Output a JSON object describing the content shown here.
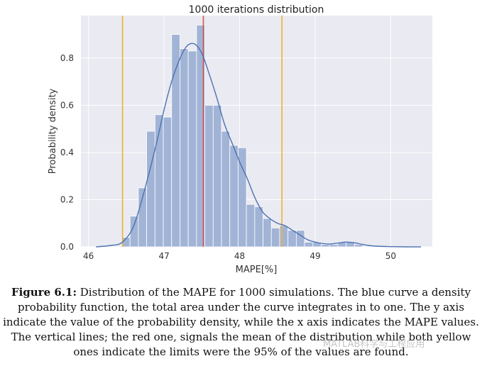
{
  "chart_data": {
    "type": "histogram",
    "title": "1000 iterations distribution",
    "xlabel": "MAPE[%]",
    "ylabel": "Probability density",
    "xlim": [
      45.9,
      50.55
    ],
    "ylim": [
      0,
      0.98
    ],
    "xticks": [
      "46",
      "47",
      "48",
      "49",
      "50"
    ],
    "yticks": [
      "0.0",
      "0.2",
      "0.4",
      "0.6",
      "0.8"
    ],
    "grid": true,
    "bins": [
      {
        "x0": 46.44,
        "x1": 46.55,
        "density": 0.04
      },
      {
        "x0": 46.55,
        "x1": 46.66,
        "density": 0.13
      },
      {
        "x0": 46.66,
        "x1": 46.77,
        "density": 0.25
      },
      {
        "x0": 46.77,
        "x1": 46.88,
        "density": 0.49
      },
      {
        "x0": 46.88,
        "x1": 46.99,
        "density": 0.56
      },
      {
        "x0": 46.99,
        "x1": 47.1,
        "density": 0.55
      },
      {
        "x0": 47.1,
        "x1": 47.21,
        "density": 0.9
      },
      {
        "x0": 47.21,
        "x1": 47.32,
        "density": 0.84
      },
      {
        "x0": 47.32,
        "x1": 47.43,
        "density": 0.83
      },
      {
        "x0": 47.43,
        "x1": 47.54,
        "density": 0.94
      },
      {
        "x0": 47.54,
        "x1": 47.65,
        "density": 0.6
      },
      {
        "x0": 47.65,
        "x1": 47.76,
        "density": 0.6
      },
      {
        "x0": 47.76,
        "x1": 47.87,
        "density": 0.49
      },
      {
        "x0": 47.87,
        "x1": 47.98,
        "density": 0.43
      },
      {
        "x0": 47.98,
        "x1": 48.09,
        "density": 0.42
      },
      {
        "x0": 48.09,
        "x1": 48.2,
        "density": 0.18
      },
      {
        "x0": 48.2,
        "x1": 48.31,
        "density": 0.17
      },
      {
        "x0": 48.31,
        "x1": 48.42,
        "density": 0.12
      },
      {
        "x0": 48.42,
        "x1": 48.53,
        "density": 0.08
      },
      {
        "x0": 48.53,
        "x1": 48.64,
        "density": 0.09
      },
      {
        "x0": 48.64,
        "x1": 48.75,
        "density": 0.07
      },
      {
        "x0": 48.75,
        "x1": 48.86,
        "density": 0.07
      },
      {
        "x0": 48.86,
        "x1": 48.97,
        "density": 0.02
      },
      {
        "x0": 48.97,
        "x1": 49.08,
        "density": 0.02
      },
      {
        "x0": 49.08,
        "x1": 49.19,
        "density": 0.01
      },
      {
        "x0": 49.19,
        "x1": 49.3,
        "density": 0.01
      },
      {
        "x0": 49.3,
        "x1": 49.41,
        "density": 0.02
      },
      {
        "x0": 49.41,
        "x1": 49.52,
        "density": 0.02
      },
      {
        "x0": 49.52,
        "x1": 49.63,
        "density": 0.01
      }
    ],
    "kde": {
      "x": [
        46.1,
        46.3,
        46.45,
        46.6,
        46.75,
        46.9,
        47.0,
        47.1,
        47.2,
        47.3,
        47.4,
        47.5,
        47.6,
        47.7,
        47.8,
        47.9,
        48.0,
        48.1,
        48.2,
        48.3,
        48.4,
        48.5,
        48.6,
        48.7,
        48.8,
        48.9,
        49.0,
        49.1,
        49.2,
        49.3,
        49.4,
        49.5,
        49.6,
        49.7,
        49.8,
        50.0,
        50.2,
        50.4
      ],
      "y": [
        0.0,
        0.006,
        0.02,
        0.09,
        0.25,
        0.44,
        0.58,
        0.7,
        0.79,
        0.85,
        0.86,
        0.82,
        0.73,
        0.63,
        0.52,
        0.44,
        0.36,
        0.29,
        0.21,
        0.15,
        0.12,
        0.1,
        0.09,
        0.07,
        0.05,
        0.03,
        0.02,
        0.014,
        0.012,
        0.016,
        0.02,
        0.018,
        0.012,
        0.006,
        0.003,
        0.001,
        0.0,
        0.0
      ]
    },
    "vertical_lines": [
      {
        "name": "mean",
        "x": 47.52,
        "color": "#d9534f"
      },
      {
        "name": "lower-95-limit",
        "x": 46.45,
        "color": "#f0b030"
      },
      {
        "name": "upper-95-limit",
        "x": 48.56,
        "color": "#f0b030"
      }
    ],
    "colors": {
      "background": "#eaeaf2",
      "grid": "#ffffff",
      "bar": "#a2b4d6",
      "bar_edge": "#ffffff",
      "kde": "#4c72b0"
    }
  },
  "caption": {
    "label": "Figure 6.1:",
    "text": " Distribution of the MAPE for 1000 simulations. The blue curve a density probability function, the total area under the curve integrates in to one. The y axis indicate the value of the probability density, while the x axis indicates the MAPE values. The vertical lines; the red one, signals the mean of the distribution while both yellow ones indicate the limits were the 95% of the values are found."
  },
  "watermark": "MATLAB科学与工程应用"
}
